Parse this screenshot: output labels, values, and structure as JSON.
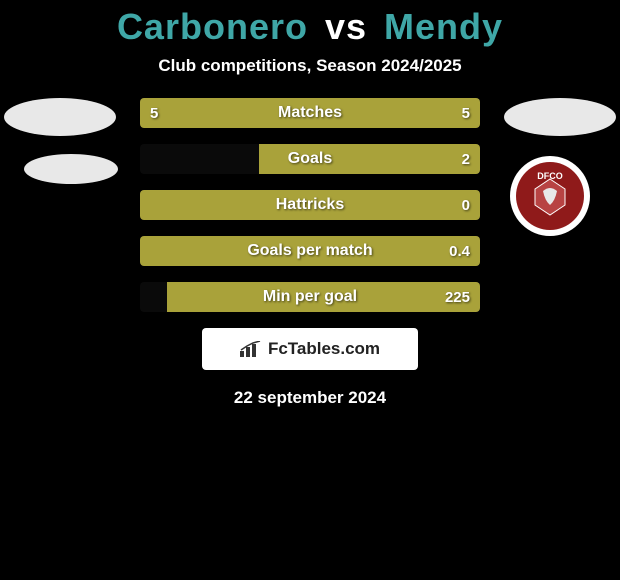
{
  "title": {
    "player1": "Carbonero",
    "vs": "vs",
    "player2": "Mendy",
    "color1": "#3fa7a7",
    "color_vs": "#ffffff",
    "color2": "#3fa7a7"
  },
  "subtitle": "Club competitions, Season 2024/2025",
  "avatars": {
    "left_top_bg": "#e8e8e8",
    "left_bottom_bg": "#e8e8e8",
    "right_top_bg": "#e8e8e8",
    "badge_bg": "#ffffff",
    "badge_inner": "#8f1a1a",
    "badge_text": "DFCO"
  },
  "chart": {
    "track_bg": "#0a0a0a",
    "fill_color": "#a9a23a",
    "bars": [
      {
        "label": "Matches",
        "left": "5",
        "right": "5",
        "left_pct": 50,
        "right_pct": 50,
        "show_left": true,
        "show_right": true
      },
      {
        "label": "Goals",
        "left": "",
        "right": "2",
        "left_pct": 0,
        "right_pct": 65,
        "show_left": false,
        "show_right": true
      },
      {
        "label": "Hattricks",
        "left": "",
        "right": "0",
        "left_pct": 0,
        "right_pct": 100,
        "show_left": false,
        "show_right": true
      },
      {
        "label": "Goals per match",
        "left": "",
        "right": "0.4",
        "left_pct": 0,
        "right_pct": 100,
        "show_left": false,
        "show_right": true
      },
      {
        "label": "Min per goal",
        "left": "",
        "right": "225",
        "left_pct": 0,
        "right_pct": 92,
        "show_left": false,
        "show_right": true
      }
    ]
  },
  "watermark": "FcTables.com",
  "date": "22 september 2024"
}
